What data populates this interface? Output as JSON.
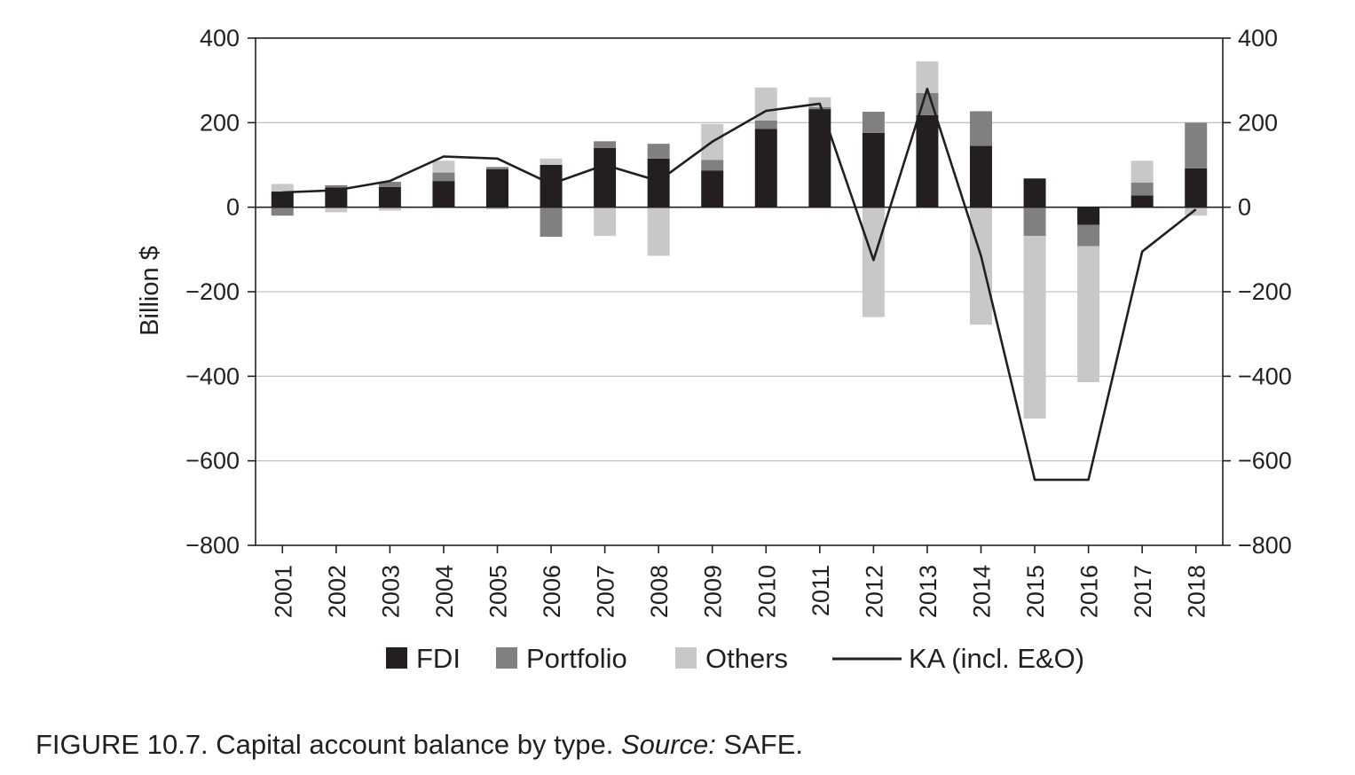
{
  "chart_data": {
    "type": "bar",
    "stacked": true,
    "categories": [
      "2001",
      "2002",
      "2003",
      "2004",
      "2005",
      "2006",
      "2007",
      "2008",
      "2009",
      "2010",
      "2011",
      "2012",
      "2013",
      "2014",
      "2015",
      "2016",
      "2017",
      "2018"
    ],
    "series": [
      {
        "name": "FDI",
        "type": "bar",
        "color": "#231f20",
        "values": [
          37,
          47,
          48,
          62,
          90,
          100,
          140,
          115,
          87,
          185,
          232,
          176,
          218,
          145,
          68,
          -42,
          28,
          92
        ]
      },
      {
        "name": "Portfolio",
        "type": "bar",
        "color": "#808080",
        "values": [
          -20,
          5,
          12,
          20,
          5,
          -70,
          16,
          35,
          25,
          20,
          5,
          50,
          52,
          82,
          -68,
          -50,
          30,
          108
        ]
      },
      {
        "name": "Others",
        "type": "bar",
        "color": "#c8c8c8",
        "values": [
          18,
          -12,
          -8,
          28,
          -5,
          15,
          -68,
          -115,
          85,
          78,
          23,
          -260,
          75,
          -278,
          -432,
          -322,
          52,
          -20
        ]
      },
      {
        "name": "KA (incl. E&O)",
        "type": "line",
        "color": "#231f20",
        "values": [
          35,
          40,
          62,
          120,
          115,
          55,
          100,
          62,
          155,
          228,
          245,
          -125,
          280,
          -115,
          -645,
          -645,
          -105,
          -5
        ]
      }
    ],
    "xlabel": "",
    "ylabel": "Billion $",
    "ylim": [
      -800,
      400
    ],
    "yticks": [
      400,
      200,
      0,
      -200,
      -400,
      -600,
      -800
    ],
    "ytick_labels": [
      "400",
      "200",
      "0",
      "−200",
      "−400",
      "−600",
      "−800"
    ],
    "secondary_ylim": [
      -800,
      400
    ],
    "grid": true,
    "legend_position": "bottom"
  },
  "caption": {
    "prefix": "FIGURE 10.7. Capital account balance by type.",
    "source_label": "Source:",
    "source_value": "SAFE."
  }
}
